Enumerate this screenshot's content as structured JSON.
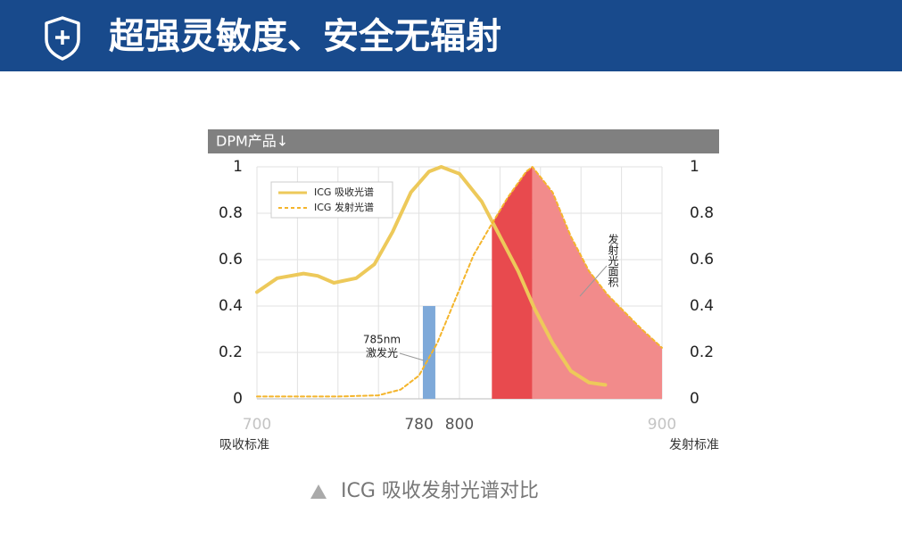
{
  "header": {
    "title": "超强灵敏度、安全无辐射"
  },
  "caption": "ICG 吸收发射光谱对比",
  "chart_data": {
    "type": "line",
    "title": "DPM产品↓",
    "ylabel": "吸收标准",
    "y2label": "发射标准",
    "xlim": [
      700,
      900
    ],
    "xticks": [
      700,
      780,
      800,
      900
    ],
    "xtick_colors": [
      "#c4c4c4",
      "#555555",
      "#555555",
      "#c4c4c4"
    ],
    "xgrid": [
      700,
      720,
      740,
      760,
      780,
      800,
      820,
      840,
      860,
      880,
      900
    ],
    "ylim": [
      0,
      1
    ],
    "yticks": [
      0,
      0.2,
      0.4,
      0.6,
      0.8,
      1
    ],
    "y2lim": [
      0,
      1
    ],
    "y2ticks": [
      0,
      0.2,
      0.4,
      0.6,
      0.8,
      1
    ],
    "grid": true,
    "legend": "upper left",
    "series": [
      {
        "name": "ICG 吸收光谱",
        "color": "#edc95a",
        "dashed": false,
        "x": [
          700,
          710,
          723,
          730,
          738,
          749,
          758,
          767,
          776,
          785,
          791,
          800,
          811,
          820,
          829,
          837,
          846,
          855,
          864,
          872
        ],
        "values": [
          0.46,
          0.52,
          0.54,
          0.53,
          0.5,
          0.52,
          0.58,
          0.72,
          0.89,
          0.98,
          1.0,
          0.97,
          0.85,
          0.7,
          0.55,
          0.39,
          0.24,
          0.12,
          0.07,
          0.06
        ]
      },
      {
        "name": "ICG 发射光谱",
        "color": "#f4b52c",
        "dashed": true,
        "axis": "y2",
        "x": [
          700,
          720,
          740,
          760,
          771,
          780,
          789,
          798,
          807,
          815,
          824,
          833,
          836,
          846,
          855,
          864,
          873,
          882,
          890,
          900
        ],
        "values": [
          0.01,
          0.01,
          0.01,
          0.015,
          0.04,
          0.1,
          0.24,
          0.43,
          0.62,
          0.74,
          0.87,
          0.98,
          1.0,
          0.89,
          0.7,
          0.55,
          0.45,
          0.37,
          0.3,
          0.22
        ]
      }
    ],
    "shaded_regions": [
      {
        "x": [
          816,
          836
        ],
        "color": "#e84a4e"
      },
      {
        "x": [
          836,
          900
        ],
        "color": "#f28b8b"
      }
    ],
    "bars": [
      {
        "x": 785,
        "value": 0.4,
        "color": "#7ea9d9"
      }
    ],
    "annotations": [
      "785nm",
      "激发光",
      "发射光面积"
    ]
  }
}
